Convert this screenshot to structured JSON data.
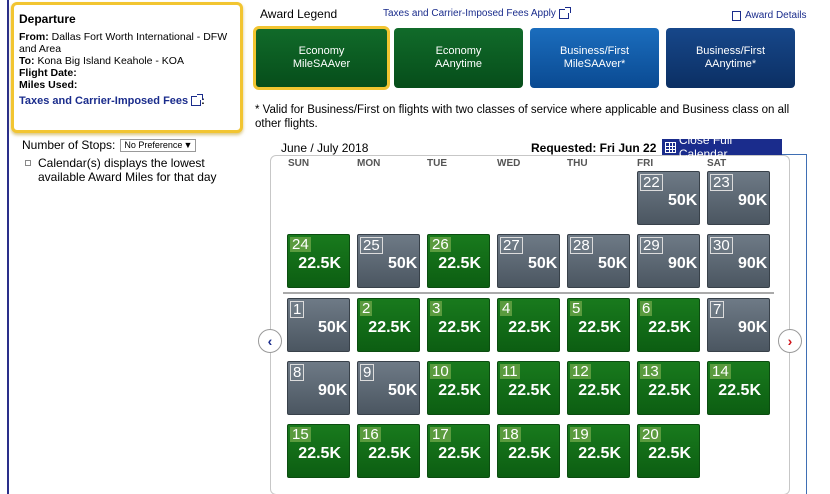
{
  "departure": {
    "title": "Departure",
    "from_label": "From:",
    "from_value": "Dallas Fort Worth International - DFW and Area",
    "to_label": "To:",
    "to_value": "Kona Big Island Keahole - KOA",
    "flight_date_label": "Flight Date:",
    "miles_used_label": "Miles Used:",
    "fees_link": "Taxes and Carrier-Imposed Fees",
    "fees_colon": ":"
  },
  "filters": {
    "stops_label": "Number of Stops:",
    "stops_value": "No Preference",
    "calendar_note": "Calendar(s) displays the lowest available Award Miles for that day"
  },
  "legend": {
    "title": "Award Legend",
    "fees_link": "Taxes and Carrier-Imposed Fees Apply",
    "award_details": "Award Details",
    "buttons": [
      {
        "line1": "Economy",
        "line2": "MileSAAver"
      },
      {
        "line1": "Economy",
        "line2": "AAnytime"
      },
      {
        "line1": "Business/First",
        "line2": "MileSAAver*"
      },
      {
        "line1": "Business/First",
        "line2": "AAnytime*"
      }
    ],
    "footnote": "* Valid for Business/First on flights with two classes of service where applicable and Business class on all other flights."
  },
  "calendar": {
    "month": "June / July 2018",
    "requested": "Requested: Fri Jun 22",
    "close_button": "Close Full Calendar",
    "days_of_week": [
      "SUN",
      "MON",
      "TUE",
      "WED",
      "THU",
      "FRI",
      "SAT"
    ],
    "weeks": [
      [
        null,
        null,
        null,
        null,
        null,
        {
          "day": "22",
          "miles": "50K",
          "type": "gray"
        },
        {
          "day": "23",
          "miles": "90K",
          "type": "gray"
        }
      ],
      [
        {
          "day": "24",
          "miles": "22.5K",
          "type": "green"
        },
        {
          "day": "25",
          "miles": "50K",
          "type": "gray"
        },
        {
          "day": "26",
          "miles": "22.5K",
          "type": "green"
        },
        {
          "day": "27",
          "miles": "50K",
          "type": "gray"
        },
        {
          "day": "28",
          "miles": "50K",
          "type": "gray"
        },
        {
          "day": "29",
          "miles": "90K",
          "type": "gray"
        },
        {
          "day": "30",
          "miles": "90K",
          "type": "gray"
        }
      ],
      [
        {
          "day": "1",
          "miles": "50K",
          "type": "gray"
        },
        {
          "day": "2",
          "miles": "22.5K",
          "type": "green"
        },
        {
          "day": "3",
          "miles": "22.5K",
          "type": "green"
        },
        {
          "day": "4",
          "miles": "22.5K",
          "type": "green"
        },
        {
          "day": "5",
          "miles": "22.5K",
          "type": "green"
        },
        {
          "day": "6",
          "miles": "22.5K",
          "type": "green"
        },
        {
          "day": "7",
          "miles": "90K",
          "type": "gray"
        }
      ],
      [
        {
          "day": "8",
          "miles": "90K",
          "type": "gray"
        },
        {
          "day": "9",
          "miles": "50K",
          "type": "gray"
        },
        {
          "day": "10",
          "miles": "22.5K",
          "type": "green"
        },
        {
          "day": "11",
          "miles": "22.5K",
          "type": "green"
        },
        {
          "day": "12",
          "miles": "22.5K",
          "type": "green"
        },
        {
          "day": "13",
          "miles": "22.5K",
          "type": "green"
        },
        {
          "day": "14",
          "miles": "22.5K",
          "type": "green"
        }
      ],
      [
        {
          "day": "15",
          "miles": "22.5K",
          "type": "green"
        },
        {
          "day": "16",
          "miles": "22.5K",
          "type": "green"
        },
        {
          "day": "17",
          "miles": "22.5K",
          "type": "green"
        },
        {
          "day": "18",
          "miles": "22.5K",
          "type": "green"
        },
        {
          "day": "19",
          "miles": "22.5K",
          "type": "green"
        },
        {
          "day": "20",
          "miles": "22.5K",
          "type": "green"
        },
        null
      ]
    ],
    "prev_icon": "chevron-left-icon",
    "next_icon": "chevron-right-icon"
  }
}
